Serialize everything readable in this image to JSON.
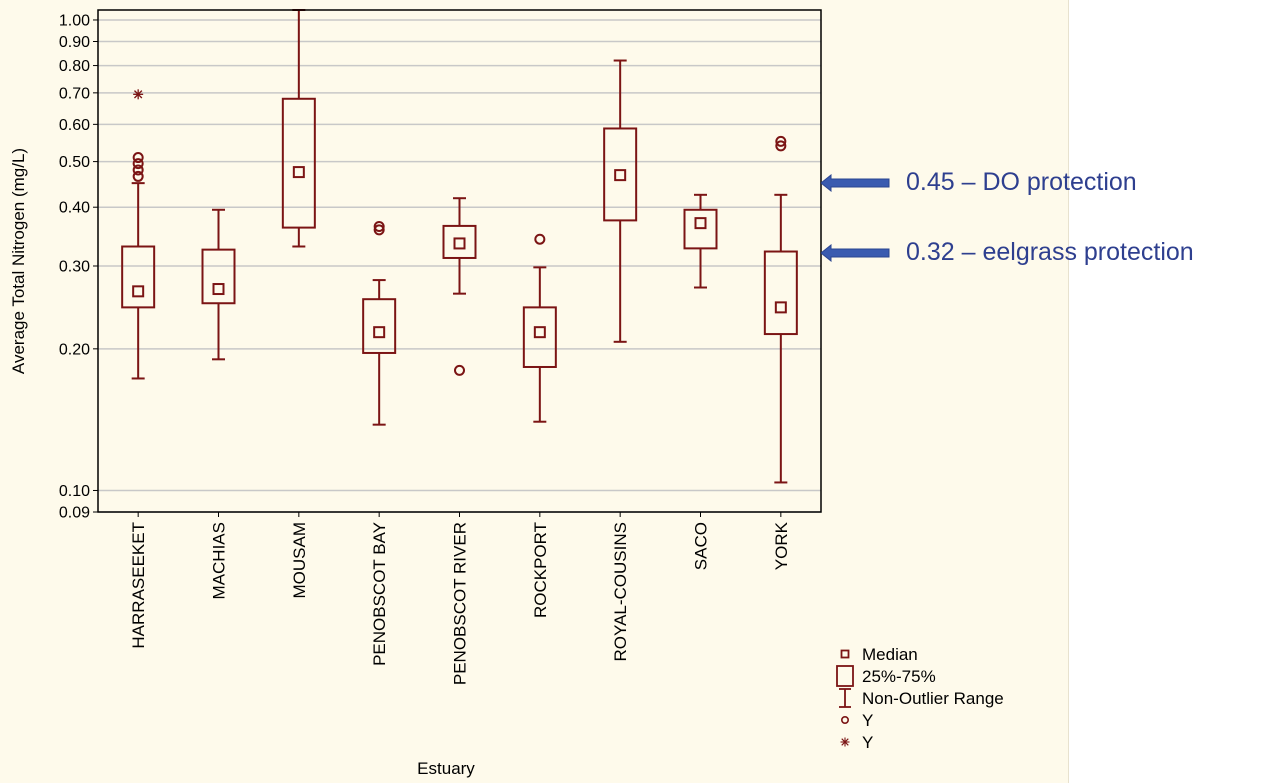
{
  "colors": {
    "series": "#7b1414",
    "grid": "#c8c8c8",
    "annotation": "#2e3f8f",
    "arrow": "#3a5bb0",
    "background": "#fefaeb"
  },
  "chart_data": {
    "type": "box",
    "ylabel": "Average Total Nitrogen (mg/L)",
    "xlabel": "Estuary",
    "yscale": "log",
    "ylim": [
      0.09,
      1.05
    ],
    "yticks": [
      0.09,
      0.1,
      0.2,
      0.3,
      0.4,
      0.5,
      0.6,
      0.7,
      0.8,
      0.9,
      1.0
    ],
    "ytick_labels": [
      "0.09",
      "0.10",
      "0.20",
      "0.30",
      "0.40",
      "0.50",
      "0.60",
      "0.70",
      "0.80",
      "0.90",
      "1.00"
    ],
    "grid": true,
    "categories": [
      "HARRASEEKET",
      "MACHIAS",
      "MOUSAM",
      "PENOBSCOT BAY",
      "PENOBSCOT RIVER",
      "ROCKPORT",
      "ROYAL-COUSINS",
      "SACO",
      "YORK"
    ],
    "boxes": [
      {
        "median": 0.265,
        "q1": 0.245,
        "q3": 0.33,
        "whisker_low": 0.173,
        "whisker_high": 0.45,
        "outliers": [
          0.465,
          0.48,
          0.495,
          0.51
        ],
        "extremes": [
          0.695
        ]
      },
      {
        "median": 0.268,
        "q1": 0.25,
        "q3": 0.325,
        "whisker_low": 0.19,
        "whisker_high": 0.395,
        "outliers": [],
        "extremes": []
      },
      {
        "median": 0.475,
        "q1": 0.362,
        "q3": 0.68,
        "whisker_low": 0.33,
        "whisker_high": 1.05,
        "outliers": [],
        "extremes": []
      },
      {
        "median": 0.217,
        "q1": 0.196,
        "q3": 0.255,
        "whisker_low": 0.138,
        "whisker_high": 0.28,
        "outliers": [
          0.358,
          0.364
        ],
        "extremes": []
      },
      {
        "median": 0.335,
        "q1": 0.312,
        "q3": 0.365,
        "whisker_low": 0.262,
        "whisker_high": 0.418,
        "outliers": [
          0.18
        ],
        "extremes": []
      },
      {
        "median": 0.217,
        "q1": 0.183,
        "q3": 0.245,
        "whisker_low": 0.14,
        "whisker_high": 0.298,
        "outliers": [
          0.342
        ],
        "extremes": []
      },
      {
        "median": 0.468,
        "q1": 0.375,
        "q3": 0.588,
        "whisker_low": 0.207,
        "whisker_high": 0.82,
        "outliers": [],
        "extremes": []
      },
      {
        "median": 0.37,
        "q1": 0.327,
        "q3": 0.395,
        "whisker_low": 0.27,
        "whisker_high": 0.425,
        "outliers": [],
        "extremes": []
      },
      {
        "median": 0.245,
        "q1": 0.215,
        "q3": 0.322,
        "whisker_low": 0.104,
        "whisker_high": 0.425,
        "outliers": [
          0.54,
          0.552
        ],
        "extremes": []
      }
    ],
    "legend": {
      "placement": "bottom-right",
      "items": [
        {
          "symbol": "median-square",
          "label": "Median"
        },
        {
          "symbol": "box",
          "label": "25%-75%"
        },
        {
          "symbol": "whisker",
          "label": "Non-Outlier Range"
        },
        {
          "symbol": "circle",
          "label": "Y"
        },
        {
          "symbol": "asterisk",
          "label": "Y"
        }
      ]
    },
    "annotations": [
      {
        "value": 0.45,
        "label": "0.45 – DO protection"
      },
      {
        "value": 0.32,
        "label": "0.32 – eelgrass protection"
      }
    ]
  }
}
